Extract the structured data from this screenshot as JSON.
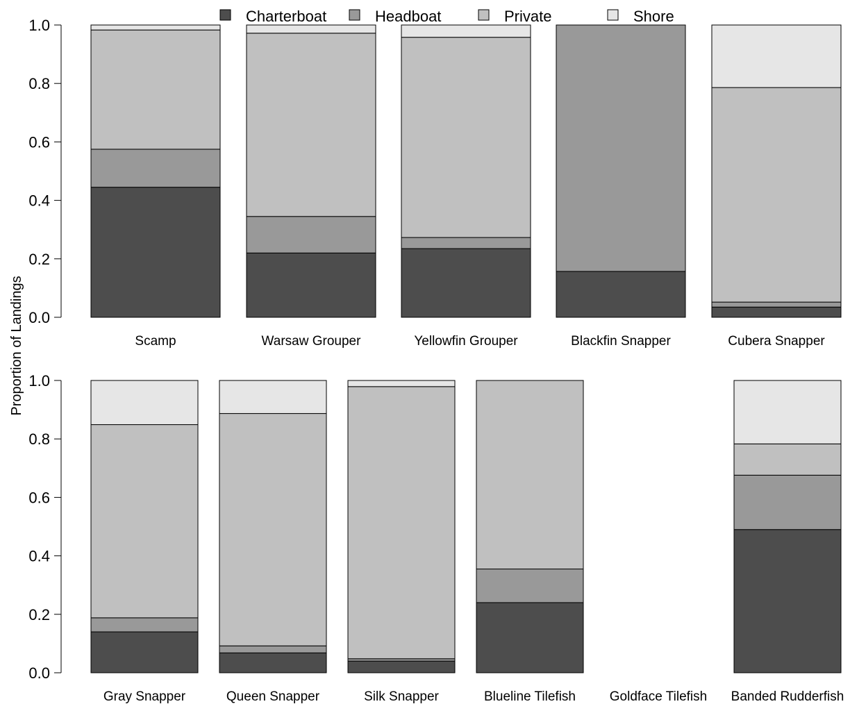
{
  "colors": {
    "Charterboat": "#4d4d4d",
    "Headboat": "#999999",
    "Private": "#c0c0c0",
    "Shore": "#e6e6e6"
  },
  "ylabel": "Proportion of Landings",
  "legend": {
    "placement": "top-center",
    "entries": [
      "Charterboat",
      "Headboat",
      "Private",
      "Shore"
    ]
  },
  "chart_data": [
    {
      "type": "bar",
      "stacked": true,
      "ylim": [
        0,
        1
      ],
      "yticks": [
        "0.0",
        "0.2",
        "0.4",
        "0.6",
        "0.8",
        "1.0"
      ],
      "categories": [
        "Scamp",
        "Warsaw Grouper",
        "Yellowfin Grouper",
        "Blackfin Snapper",
        "Cubera Snapper"
      ],
      "series": [
        {
          "name": "Charterboat",
          "values": [
            0.445,
            0.22,
            0.235,
            0.157,
            0.035
          ]
        },
        {
          "name": "Headboat",
          "values": [
            0.13,
            0.125,
            0.038,
            0.843,
            0.017
          ]
        },
        {
          "name": "Private",
          "values": [
            0.408,
            0.627,
            0.685,
            0.0,
            0.734
          ]
        },
        {
          "name": "Shore",
          "values": [
            0.017,
            0.028,
            0.042,
            0.0,
            0.214
          ]
        }
      ]
    },
    {
      "type": "bar",
      "stacked": true,
      "ylim": [
        0,
        1
      ],
      "yticks": [
        "0.0",
        "0.2",
        "0.4",
        "0.6",
        "0.8",
        "1.0"
      ],
      "categories": [
        "Gray Snapper",
        "Queen Snapper",
        "Silk Snapper",
        "Blueline Tilefish",
        "Goldface Tilefish",
        "Banded Rudderfish"
      ],
      "series": [
        {
          "name": "Charterboat",
          "values": [
            0.14,
            0.068,
            0.04,
            0.24,
            0.0,
            0.49
          ]
        },
        {
          "name": "Headboat",
          "values": [
            0.048,
            0.024,
            0.008,
            0.115,
            0.0,
            0.186
          ]
        },
        {
          "name": "Private",
          "values": [
            0.661,
            0.795,
            0.931,
            0.645,
            0.0,
            0.107
          ]
        },
        {
          "name": "Shore",
          "values": [
            0.151,
            0.113,
            0.021,
            0.0,
            0.0,
            0.217
          ]
        }
      ]
    }
  ]
}
